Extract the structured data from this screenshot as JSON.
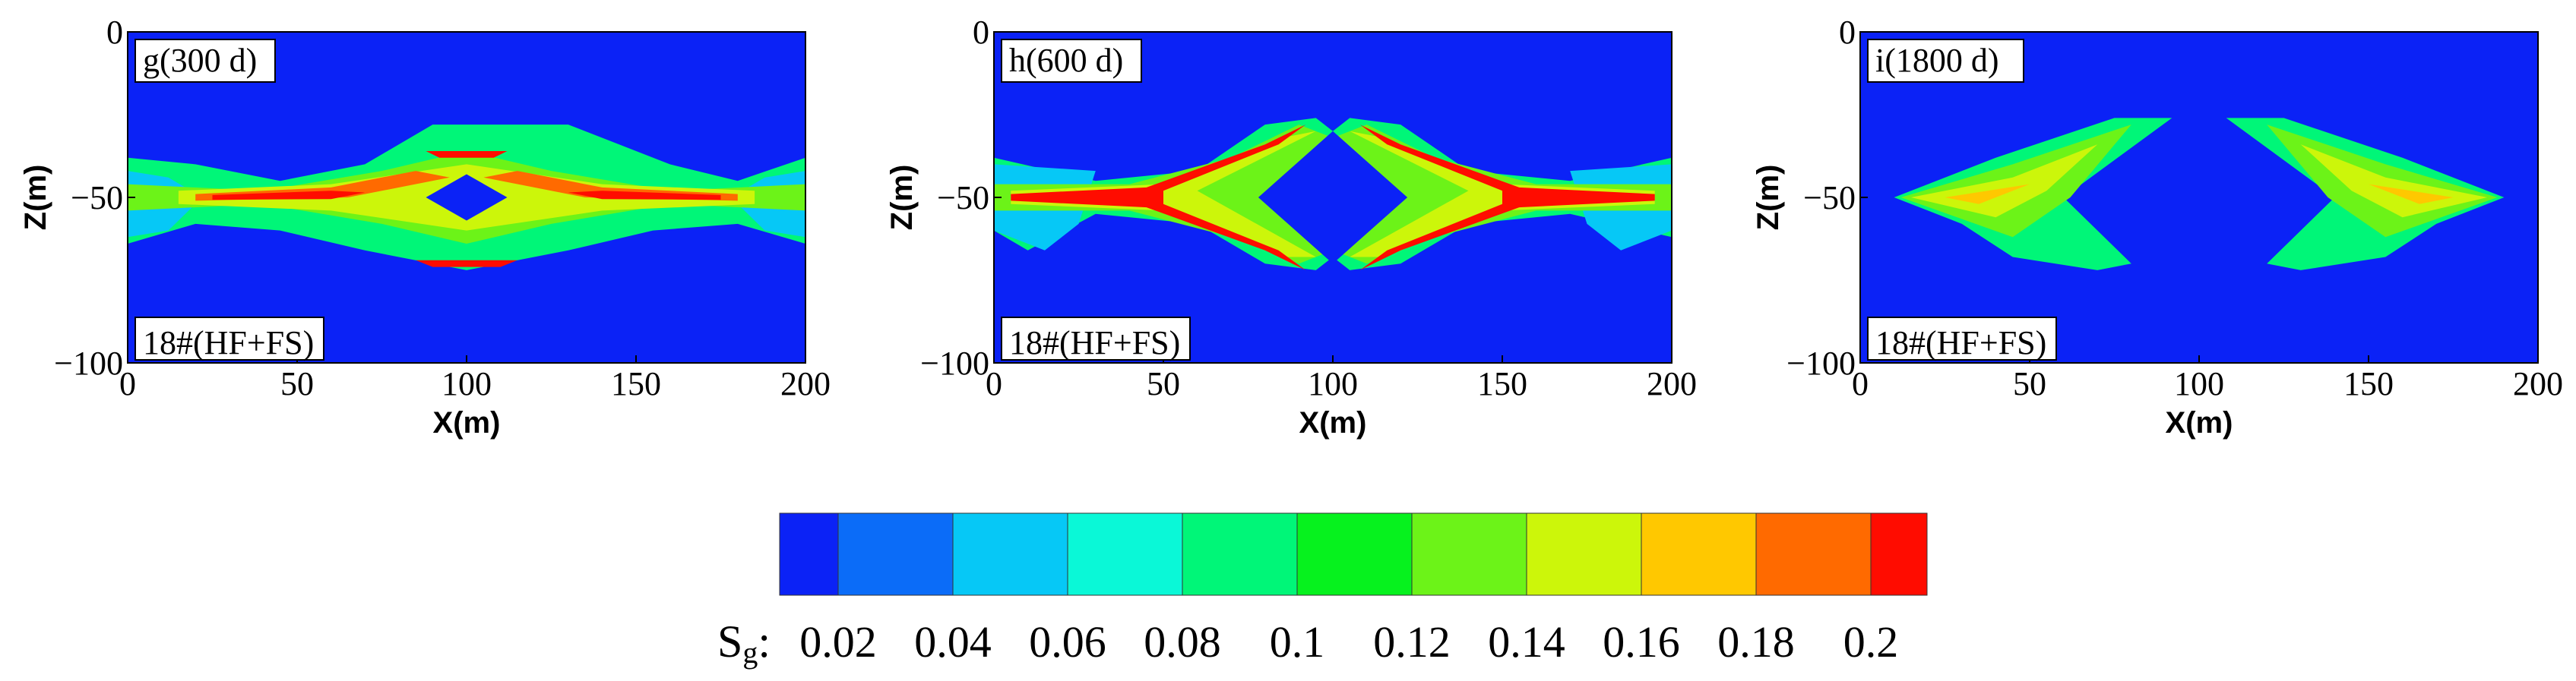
{
  "chart_data": [
    {
      "type": "heatmap",
      "panel_label": "g(300 d)",
      "case_label": "18#(HF+FS)",
      "xlabel": "X(m)",
      "ylabel": "Z(m)",
      "xlim": [
        0,
        200
      ],
      "ylim": [
        -100,
        0
      ],
      "xticks": [
        "0",
        "50",
        "100",
        "150",
        "200"
      ],
      "yticks": [
        "0",
        "−50",
        "−100"
      ],
      "background_value": 0.0
    },
    {
      "type": "heatmap",
      "panel_label": "h(600 d)",
      "case_label": "18#(HF+FS)",
      "xlabel": "X(m)",
      "ylabel": "Z(m)",
      "xlim": [
        0,
        200
      ],
      "ylim": [
        -100,
        0
      ],
      "xticks": [
        "0",
        "50",
        "100",
        "150",
        "200"
      ],
      "yticks": [
        "0",
        "−50",
        "−100"
      ],
      "background_value": 0.0
    },
    {
      "type": "heatmap",
      "panel_label": "i(1800 d)",
      "case_label": "18#(HF+FS)",
      "xlabel": "X(m)",
      "ylabel": "Z(m)",
      "xlim": [
        0,
        200
      ],
      "ylim": [
        -100,
        0
      ],
      "xticks": [
        "0",
        "50",
        "100",
        "150",
        "200"
      ],
      "yticks": [
        "0",
        "−50",
        "−100"
      ],
      "background_value": 0.0
    }
  ],
  "colorbar": {
    "variable_main": "S",
    "variable_sub": "g",
    "variable_suffix": ":",
    "tick_labels": [
      "0.02",
      "0.04",
      "0.06",
      "0.08",
      "0.1",
      "0.12",
      "0.14",
      "0.16",
      "0.18",
      "0.2"
    ],
    "colors": [
      "#0b22f6",
      "#0b6cf8",
      "#06c8f6",
      "#0af8d7",
      "#00f678",
      "#06f21e",
      "#6cf318",
      "#ccf60a",
      "#ffc800",
      "#ff6a00",
      "#ff0c00"
    ]
  }
}
